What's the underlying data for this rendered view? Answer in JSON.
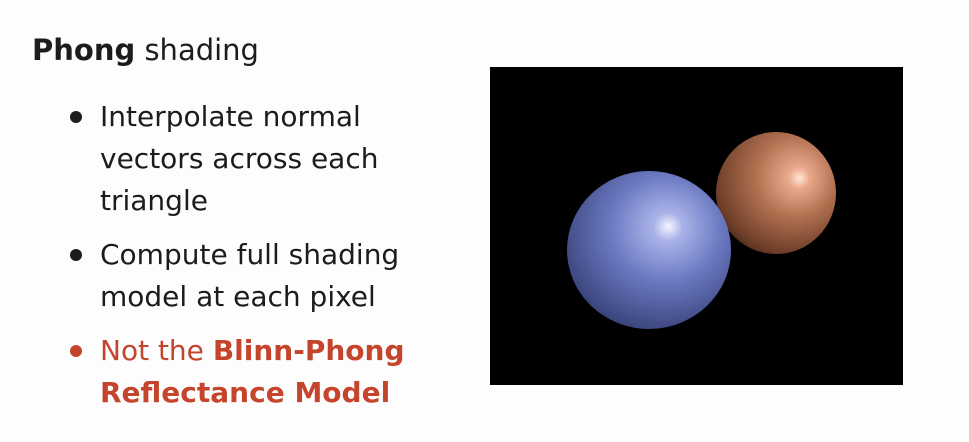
{
  "slide": {
    "title_bold": "Phong",
    "title_rest": " shading",
    "bullets": [
      {
        "lines": [
          "Interpolate normal",
          "vectors across each",
          "triangle"
        ]
      },
      {
        "lines": [
          "Compute full shading",
          "model at each pixel"
        ]
      }
    ],
    "note": {
      "prefix": "Not the ",
      "bold_line1": "Blinn-Phong",
      "bold_line2": "Reflectance Model"
    },
    "render": {
      "background": "#000000",
      "spheres": [
        {
          "name": "orange-sphere",
          "base_color": "#9a5c3f",
          "highlight_color": "#ffe6d4"
        },
        {
          "name": "blue-sphere",
          "base_color": "#5b6ab4",
          "highlight_color": "#f4f6ff"
        }
      ]
    }
  }
}
